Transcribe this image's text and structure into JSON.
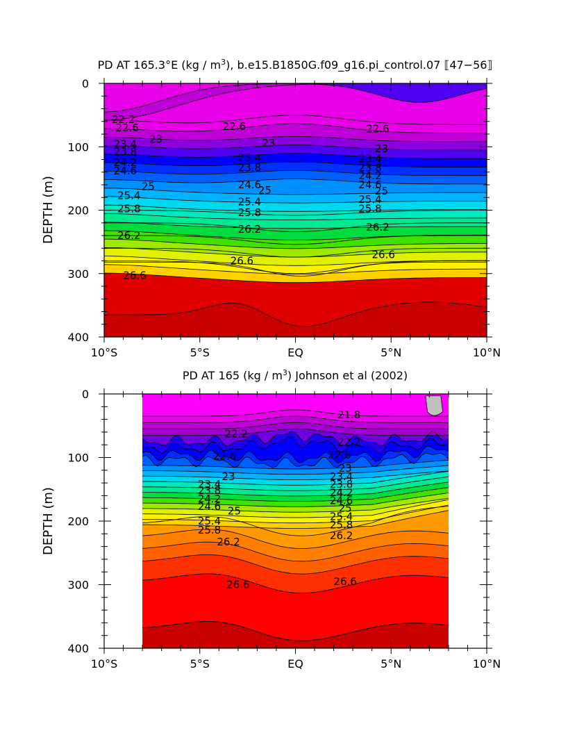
{
  "chart_data": [
    {
      "type": "contour",
      "title": "PD AT 165.3°E (kg / m³), b.e15.B1850G.f09_g16.pi_control.07 ⟦47-56⟧",
      "title_text": "PD AT 165.3°E (kg / m",
      "title_sup": "3",
      "title_rest": "), b.e15.B1850G.f09_g16.pi_control.07 ⟦47−56⟧",
      "ylabel": "DEPTH (m)",
      "xticks": [
        "10°S",
        "5°S",
        "EQ",
        "5°N",
        "10°N"
      ],
      "yticks": [
        "0",
        "100",
        "200",
        "300",
        "400"
      ],
      "xlim": [
        -10,
        10
      ],
      "ylim": [
        400,
        0
      ],
      "data_xlim": [
        -10,
        10
      ],
      "contour_interval": 0.2,
      "color_palette": [
        "#e800e8",
        "#c000d8",
        "#8a00e0",
        "#5000f0",
        "#0000ff",
        "#0030ff",
        "#0060ff",
        "#0090ff",
        "#00b4ff",
        "#00d8f0",
        "#00e8c0",
        "#00e890",
        "#00dc40",
        "#40e000",
        "#a0e800",
        "#e0f000",
        "#fff000",
        "#ffd000",
        "#ffb000",
        "#ff9a00",
        "#ff8000",
        "#ff6000",
        "#ff3000",
        "#ff0000",
        "#e00000",
        "#c80000"
      ],
      "contour_labels": [
        {
          "text": "22.2",
          "x": -9.0,
          "y": 57
        },
        {
          "text": "22.6",
          "x": -8.8,
          "y": 70
        },
        {
          "text": "23",
          "x": -7.3,
          "y": 88
        },
        {
          "text": "23.4",
          "x": -8.9,
          "y": 96
        },
        {
          "text": "23.8",
          "x": -8.9,
          "y": 108
        },
        {
          "text": "24.2",
          "x": -8.9,
          "y": 125
        },
        {
          "text": "24.6",
          "x": -8.9,
          "y": 138
        },
        {
          "text": "25",
          "x": -7.7,
          "y": 163
        },
        {
          "text": "25.4",
          "x": -8.7,
          "y": 177
        },
        {
          "text": "25.8",
          "x": -8.7,
          "y": 198
        },
        {
          "text": "26.2",
          "x": -8.7,
          "y": 240
        },
        {
          "text": "26.6",
          "x": -8.4,
          "y": 303
        },
        {
          "text": "22.6",
          "x": -3.2,
          "y": 68
        },
        {
          "text": "23",
          "x": -1.4,
          "y": 94
        },
        {
          "text": "23.4",
          "x": -2.4,
          "y": 117
        },
        {
          "text": "23.8",
          "x": -2.4,
          "y": 133
        },
        {
          "text": "24.6",
          "x": -2.4,
          "y": 160
        },
        {
          "text": "25",
          "x": -1.6,
          "y": 169
        },
        {
          "text": "25.4",
          "x": -2.4,
          "y": 187
        },
        {
          "text": "25.8",
          "x": -2.4,
          "y": 204
        },
        {
          "text": "26.2",
          "x": -2.4,
          "y": 230
        },
        {
          "text": "26.6",
          "x": -2.8,
          "y": 280
        },
        {
          "text": "22.6",
          "x": 4.3,
          "y": 72
        },
        {
          "text": "23",
          "x": 4.5,
          "y": 103
        },
        {
          "text": "23.4",
          "x": 3.9,
          "y": 119
        },
        {
          "text": "23.8",
          "x": 3.9,
          "y": 133
        },
        {
          "text": "24.2",
          "x": 3.9,
          "y": 146
        },
        {
          "text": "24.6",
          "x": 3.9,
          "y": 160
        },
        {
          "text": "25",
          "x": 4.5,
          "y": 170
        },
        {
          "text": "25.4",
          "x": 3.9,
          "y": 183
        },
        {
          "text": "25.8",
          "x": 3.9,
          "y": 198
        },
        {
          "text": "26.2",
          "x": 4.3,
          "y": 227
        },
        {
          "text": "26.6",
          "x": 4.6,
          "y": 270
        }
      ]
    },
    {
      "type": "contour",
      "title": "PD AT 165 (kg / m³) Johnson et al (2002)",
      "title_text": "PD AT 165 (kg / m",
      "title_sup": "3",
      "title_rest": ") Johnson et al (2002)",
      "ylabel": "DEPTH (m)",
      "xticks": [
        "10°S",
        "5°S",
        "EQ",
        "5°N",
        "10°N"
      ],
      "yticks": [
        "0",
        "100",
        "200",
        "300",
        "400"
      ],
      "xlim": [
        -10,
        10
      ],
      "ylim": [
        400,
        0
      ],
      "data_xlim": [
        -8,
        8
      ],
      "contour_interval": 0.2,
      "missing_color": "#c0c0c0",
      "color_palette": [
        "#ff00ff",
        "#e800e8",
        "#c000d8",
        "#a000d0",
        "#7000e0",
        "#2000f0",
        "#0000ff",
        "#0030ff",
        "#0060ff",
        "#0090ff",
        "#00b4ff",
        "#00d8f0",
        "#00e8c0",
        "#00e890",
        "#00dc40",
        "#40e000",
        "#a0e800",
        "#e0f000",
        "#fff000",
        "#ffd000",
        "#ffb000",
        "#ff9a00",
        "#ff8000",
        "#ff6000",
        "#ff3000",
        "#ff0000",
        "#e00000",
        "#c80000"
      ],
      "contour_labels": [
        {
          "text": "21.8",
          "x": 2.8,
          "y": 33
        },
        {
          "text": "22.2",
          "x": -3.1,
          "y": 63
        },
        {
          "text": "22.2",
          "x": 2.8,
          "y": 76
        },
        {
          "text": "22.6",
          "x": -3.7,
          "y": 98
        },
        {
          "text": "22.6",
          "x": 2.3,
          "y": 96
        },
        {
          "text": "23",
          "x": -3.5,
          "y": 130
        },
        {
          "text": "23",
          "x": 2.6,
          "y": 117
        },
        {
          "text": "23.4",
          "x": -4.5,
          "y": 142
        },
        {
          "text": "23.4",
          "x": 2.4,
          "y": 130
        },
        {
          "text": "23.8",
          "x": -4.5,
          "y": 152
        },
        {
          "text": "23.8",
          "x": 2.4,
          "y": 142
        },
        {
          "text": "24.2",
          "x": -4.5,
          "y": 165
        },
        {
          "text": "24.2",
          "x": 2.4,
          "y": 155
        },
        {
          "text": "24.6",
          "x": -4.5,
          "y": 177
        },
        {
          "text": "24.6",
          "x": 2.4,
          "y": 168
        },
        {
          "text": "25",
          "x": -3.2,
          "y": 184
        },
        {
          "text": "25",
          "x": 2.6,
          "y": 180
        },
        {
          "text": "25.4",
          "x": -4.5,
          "y": 200
        },
        {
          "text": "25.4",
          "x": 2.4,
          "y": 193
        },
        {
          "text": "25.8",
          "x": -4.5,
          "y": 214
        },
        {
          "text": "25.8",
          "x": 2.4,
          "y": 206
        },
        {
          "text": "26.2",
          "x": -3.5,
          "y": 233
        },
        {
          "text": "26.2",
          "x": 2.4,
          "y": 223
        },
        {
          "text": "26.6",
          "x": -3.0,
          "y": 300
        },
        {
          "text": "26.6",
          "x": 2.6,
          "y": 295
        }
      ]
    }
  ]
}
